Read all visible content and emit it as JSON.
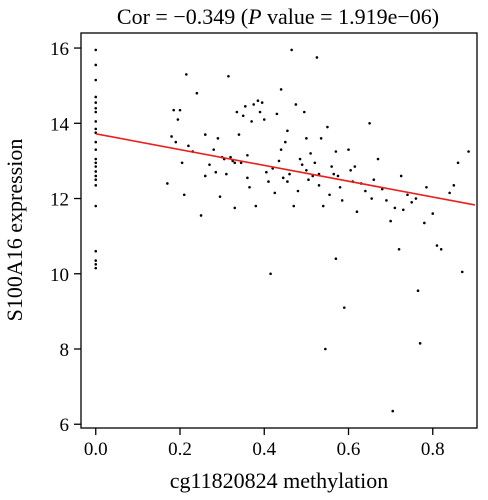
{
  "chart_data": {
    "type": "scatter",
    "title_prefix": "Cor = −0.349 (",
    "title_p": "P",
    "title_suffix": " value = 1.919e−06)",
    "xlabel": "cg11820824 methylation",
    "ylabel": "S100A16 expression",
    "xlim": [
      -0.035,
      0.905
    ],
    "ylim": [
      5.9,
      16.4
    ],
    "xticks": [
      0.0,
      0.2,
      0.4,
      0.6,
      0.8
    ],
    "xtick_labels": [
      "0.0",
      "0.2",
      "0.4",
      "0.6",
      "0.8"
    ],
    "yticks": [
      6,
      8,
      10,
      12,
      14,
      16
    ],
    "ytick_labels": [
      "6",
      "8",
      "10",
      "12",
      "14",
      "16"
    ],
    "grid": false,
    "legend": "none",
    "fit_line": {
      "x": [
        0.0,
        0.9
      ],
      "y": [
        13.72,
        11.83
      ],
      "color": "#e8211d"
    },
    "point_color": "#000000",
    "points": [
      [
        0.0,
        15.95
      ],
      [
        0.0,
        15.55
      ],
      [
        0.0,
        15.15
      ],
      [
        0.0,
        14.7
      ],
      [
        0.0,
        14.55
      ],
      [
        0.0,
        14.4
      ],
      [
        0.0,
        14.3
      ],
      [
        0.0,
        14.05
      ],
      [
        0.0,
        13.85
      ],
      [
        0.0,
        13.75
      ],
      [
        0.0,
        13.5
      ],
      [
        0.0,
        13.3
      ],
      [
        0.0,
        13.05
      ],
      [
        0.0,
        12.95
      ],
      [
        0.0,
        12.85
      ],
      [
        0.0,
        12.72
      ],
      [
        0.0,
        12.6
      ],
      [
        0.0,
        12.5
      ],
      [
        0.0,
        12.35
      ],
      [
        0.0,
        11.8
      ],
      [
        0.0,
        10.6
      ],
      [
        0.0,
        10.35
      ],
      [
        0.0,
        10.25
      ],
      [
        0.0,
        10.15
      ],
      [
        0.17,
        12.4
      ],
      [
        0.18,
        13.65
      ],
      [
        0.185,
        14.35
      ],
      [
        0.19,
        13.5
      ],
      [
        0.195,
        14.1
      ],
      [
        0.2,
        14.35
      ],
      [
        0.205,
        12.95
      ],
      [
        0.21,
        12.1
      ],
      [
        0.215,
        15.3
      ],
      [
        0.22,
        13.4
      ],
      [
        0.23,
        13.25
      ],
      [
        0.24,
        14.8
      ],
      [
        0.25,
        11.55
      ],
      [
        0.26,
        12.6
      ],
      [
        0.27,
        12.9
      ],
      [
        0.28,
        13.3
      ],
      [
        0.285,
        12.7
      ],
      [
        0.29,
        13.6
      ],
      [
        0.295,
        12.05
      ],
      [
        0.3,
        13.1
      ],
      [
        0.305,
        13.05
      ],
      [
        0.31,
        12.65
      ],
      [
        0.315,
        15.25
      ],
      [
        0.32,
        13.1
      ],
      [
        0.325,
        13.0
      ],
      [
        0.33,
        11.75
      ],
      [
        0.335,
        14.3
      ],
      [
        0.34,
        13.7
      ],
      [
        0.345,
        12.95
      ],
      [
        0.35,
        14.2
      ],
      [
        0.355,
        14.45
      ],
      [
        0.36,
        12.55
      ],
      [
        0.365,
        12.3
      ],
      [
        0.37,
        14.05
      ],
      [
        0.375,
        14.5
      ],
      [
        0.38,
        11.8
      ],
      [
        0.385,
        14.6
      ],
      [
        0.39,
        14.3
      ],
      [
        0.395,
        14.55
      ],
      [
        0.4,
        14.1
      ],
      [
        0.405,
        12.7
      ],
      [
        0.41,
        12.45
      ],
      [
        0.415,
        10.0
      ],
      [
        0.42,
        12.8
      ],
      [
        0.425,
        12.15
      ],
      [
        0.43,
        14.25
      ],
      [
        0.435,
        13.0
      ],
      [
        0.44,
        14.9
      ],
      [
        0.445,
        12.55
      ],
      [
        0.45,
        13.5
      ],
      [
        0.455,
        13.8
      ],
      [
        0.46,
        12.65
      ],
      [
        0.465,
        15.95
      ],
      [
        0.47,
        11.8
      ],
      [
        0.475,
        14.5
      ],
      [
        0.48,
        12.2
      ],
      [
        0.485,
        13.05
      ],
      [
        0.49,
        12.9
      ],
      [
        0.495,
        14.3
      ],
      [
        0.5,
        12.75
      ],
      [
        0.505,
        12.5
      ],
      [
        0.51,
        13.2
      ],
      [
        0.515,
        12.6
      ],
      [
        0.52,
        12.95
      ],
      [
        0.525,
        15.75
      ],
      [
        0.53,
        12.35
      ],
      [
        0.535,
        13.6
      ],
      [
        0.54,
        11.8
      ],
      [
        0.545,
        8.0
      ],
      [
        0.55,
        13.9
      ],
      [
        0.555,
        12.1
      ],
      [
        0.56,
        12.85
      ],
      [
        0.565,
        12.65
      ],
      [
        0.57,
        10.4
      ],
      [
        0.575,
        12.6
      ],
      [
        0.58,
        12.3
      ],
      [
        0.585,
        11.95
      ],
      [
        0.59,
        9.1
      ],
      [
        0.6,
        13.3
      ],
      [
        0.605,
        12.75
      ],
      [
        0.61,
        12.45
      ],
      [
        0.62,
        11.65
      ],
      [
        0.63,
        12.4
      ],
      [
        0.64,
        12.2
      ],
      [
        0.65,
        14.0
      ],
      [
        0.655,
        12.0
      ],
      [
        0.66,
        12.5
      ],
      [
        0.67,
        13.05
      ],
      [
        0.68,
        12.25
      ],
      [
        0.69,
        11.95
      ],
      [
        0.7,
        11.4
      ],
      [
        0.705,
        6.35
      ],
      [
        0.71,
        11.75
      ],
      [
        0.72,
        10.65
      ],
      [
        0.725,
        12.6
      ],
      [
        0.73,
        11.7
      ],
      [
        0.74,
        12.1
      ],
      [
        0.75,
        11.9
      ],
      [
        0.76,
        12.0
      ],
      [
        0.765,
        9.55
      ],
      [
        0.77,
        8.15
      ],
      [
        0.78,
        11.35
      ],
      [
        0.785,
        12.3
      ],
      [
        0.8,
        11.6
      ],
      [
        0.81,
        10.75
      ],
      [
        0.82,
        10.65
      ],
      [
        0.84,
        12.15
      ],
      [
        0.85,
        12.35
      ],
      [
        0.86,
        12.95
      ],
      [
        0.87,
        10.05
      ],
      [
        0.885,
        13.25
      ],
      [
        0.53,
        12.65
      ],
      [
        0.455,
        12.45
      ],
      [
        0.36,
        13.15
      ],
      [
        0.57,
        13.25
      ],
      [
        0.615,
        12.85
      ],
      [
        0.44,
        13.3
      ],
      [
        0.5,
        13.6
      ],
      [
        0.26,
        13.7
      ],
      [
        0.33,
        12.95
      ]
    ]
  }
}
